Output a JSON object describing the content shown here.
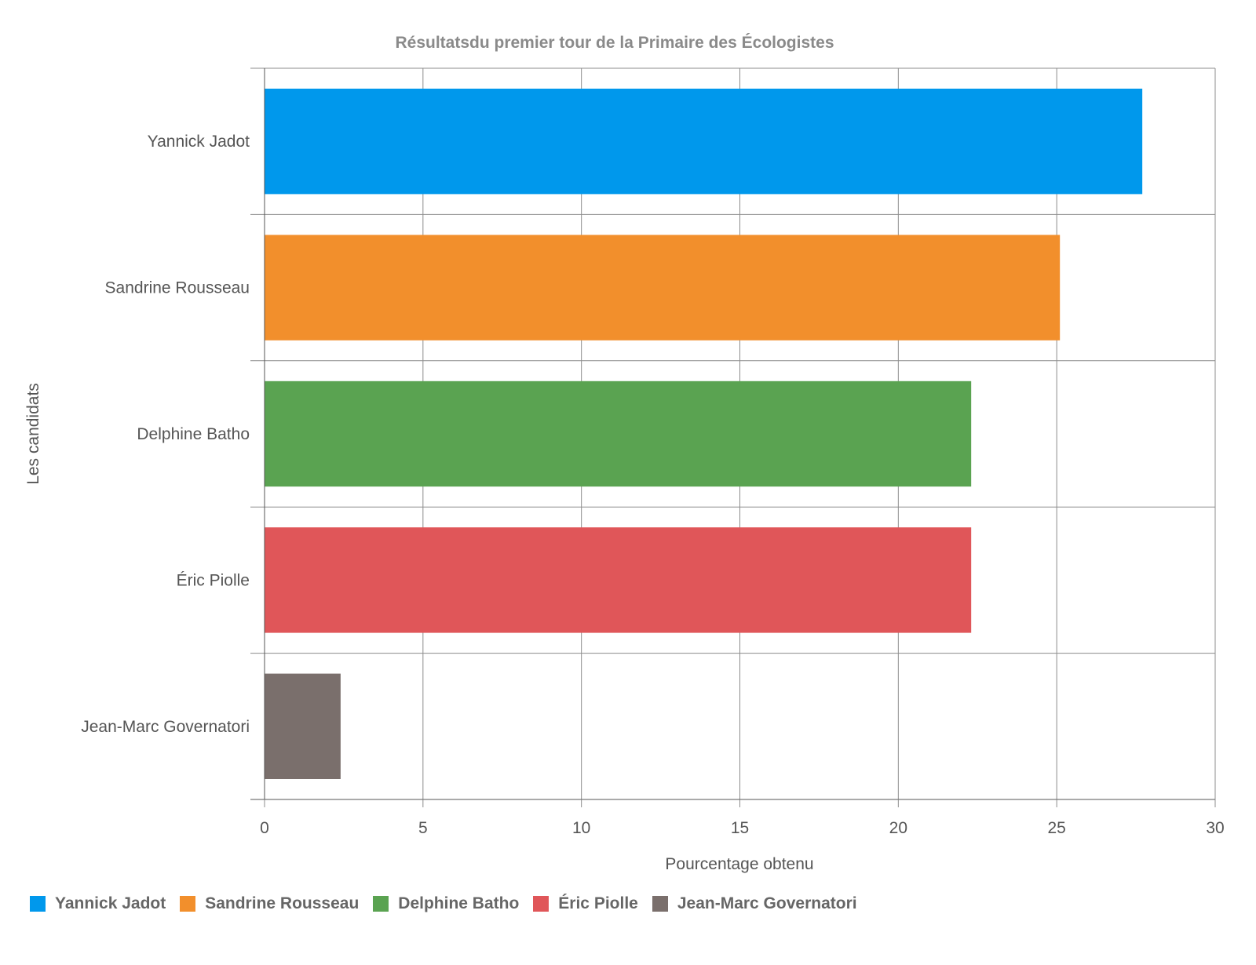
{
  "chart_data": {
    "type": "bar",
    "orientation": "horizontal",
    "title": "Résultatsdu premier tour de la Primaire des Écologistes",
    "xlabel": "Pourcentage obtenu",
    "ylabel": "Les candidats",
    "xlim": [
      0,
      30
    ],
    "xticks": [
      0,
      5,
      10,
      15,
      20,
      25,
      30
    ],
    "grid": true,
    "legend_position": "bottom-left",
    "categories": [
      "Yannick Jadot",
      "Sandrine Rousseau",
      "Delphine Batho",
      "Éric Piolle",
      "Jean-Marc Governatori"
    ],
    "values": [
      27.7,
      25.1,
      22.3,
      22.3,
      2.4
    ],
    "colors": [
      "#0098ec",
      "#f28f2c",
      "#5aa351",
      "#e05659",
      "#7a6f6c"
    ],
    "legend": [
      "Yannick Jadot",
      "Sandrine Rousseau",
      "Delphine Batho",
      "Éric Piolle",
      "Jean-Marc Governatori"
    ]
  }
}
